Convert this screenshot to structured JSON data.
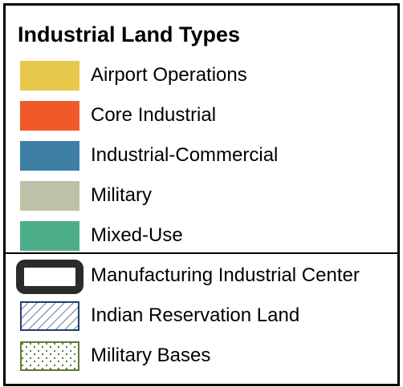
{
  "legend": {
    "title": "Industrial Land Types",
    "land_types": [
      {
        "label": "Airport Operations",
        "color": "#E8C84A"
      },
      {
        "label": "Core Industrial",
        "color": "#F05A2A"
      },
      {
        "label": "Industrial-Commercial",
        "color": "#3E7FA6"
      },
      {
        "label": "Military",
        "color": "#BEC0A8"
      },
      {
        "label": "Mixed-Use",
        "color": "#4CAF89"
      }
    ],
    "overlays": [
      {
        "label": "Manufacturing Industrial Center",
        "icon": "thick-black-outline",
        "color": "#2B2B2B"
      },
      {
        "label": "Indian Reservation Land",
        "icon": "diagonal-hatch",
        "color": "#1F3F6E"
      },
      {
        "label": "Military Bases",
        "icon": "dot-stipple",
        "color": "#5E7A35"
      }
    ]
  }
}
